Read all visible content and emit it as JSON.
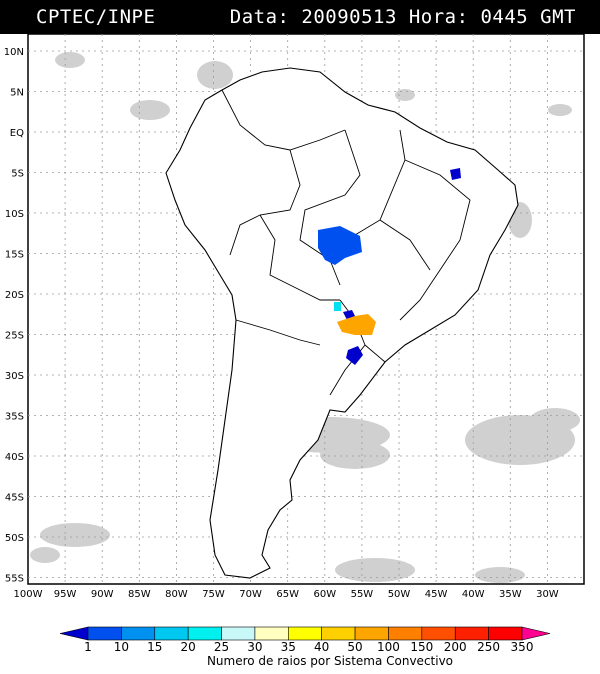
{
  "header": {
    "agency": "CPTEC/INPE",
    "datetime": "Data: 20090513 Hora: 0445 GMT"
  },
  "map": {
    "lat_labels": [
      "10N",
      "5N",
      "EQ",
      "5S",
      "10S",
      "15S",
      "20S",
      "25S",
      "30S",
      "35S",
      "40S",
      "45S",
      "50S",
      "55S"
    ],
    "lon_labels": [
      "100W",
      "95W",
      "90W",
      "85W",
      "80W",
      "75W",
      "70W",
      "65W",
      "60W",
      "55W",
      "50W",
      "45W",
      "40W",
      "35W",
      "30W"
    ],
    "colors": {
      "land_fill": "#ffffff",
      "coast_line": "#000000",
      "grid_line": "#9a9a9a",
      "cloud": "#c8c8c8"
    }
  },
  "legend": {
    "ticks": [
      "1",
      "10",
      "15",
      "20",
      "25",
      "30",
      "35",
      "40",
      "50",
      "100",
      "150",
      "200",
      "250",
      "350"
    ],
    "colors": [
      "#0000cc",
      "#0050f0",
      "#0090f0",
      "#00c8f0",
      "#00f0f0",
      "#c8f8f8",
      "#ffffc0",
      "#ffff00",
      "#ffd000",
      "#ffa500",
      "#ff8000",
      "#ff5000",
      "#ff2000",
      "#ff0000",
      "#ff0090"
    ],
    "caption": "Numero de raios por Sistema Convectivo"
  }
}
